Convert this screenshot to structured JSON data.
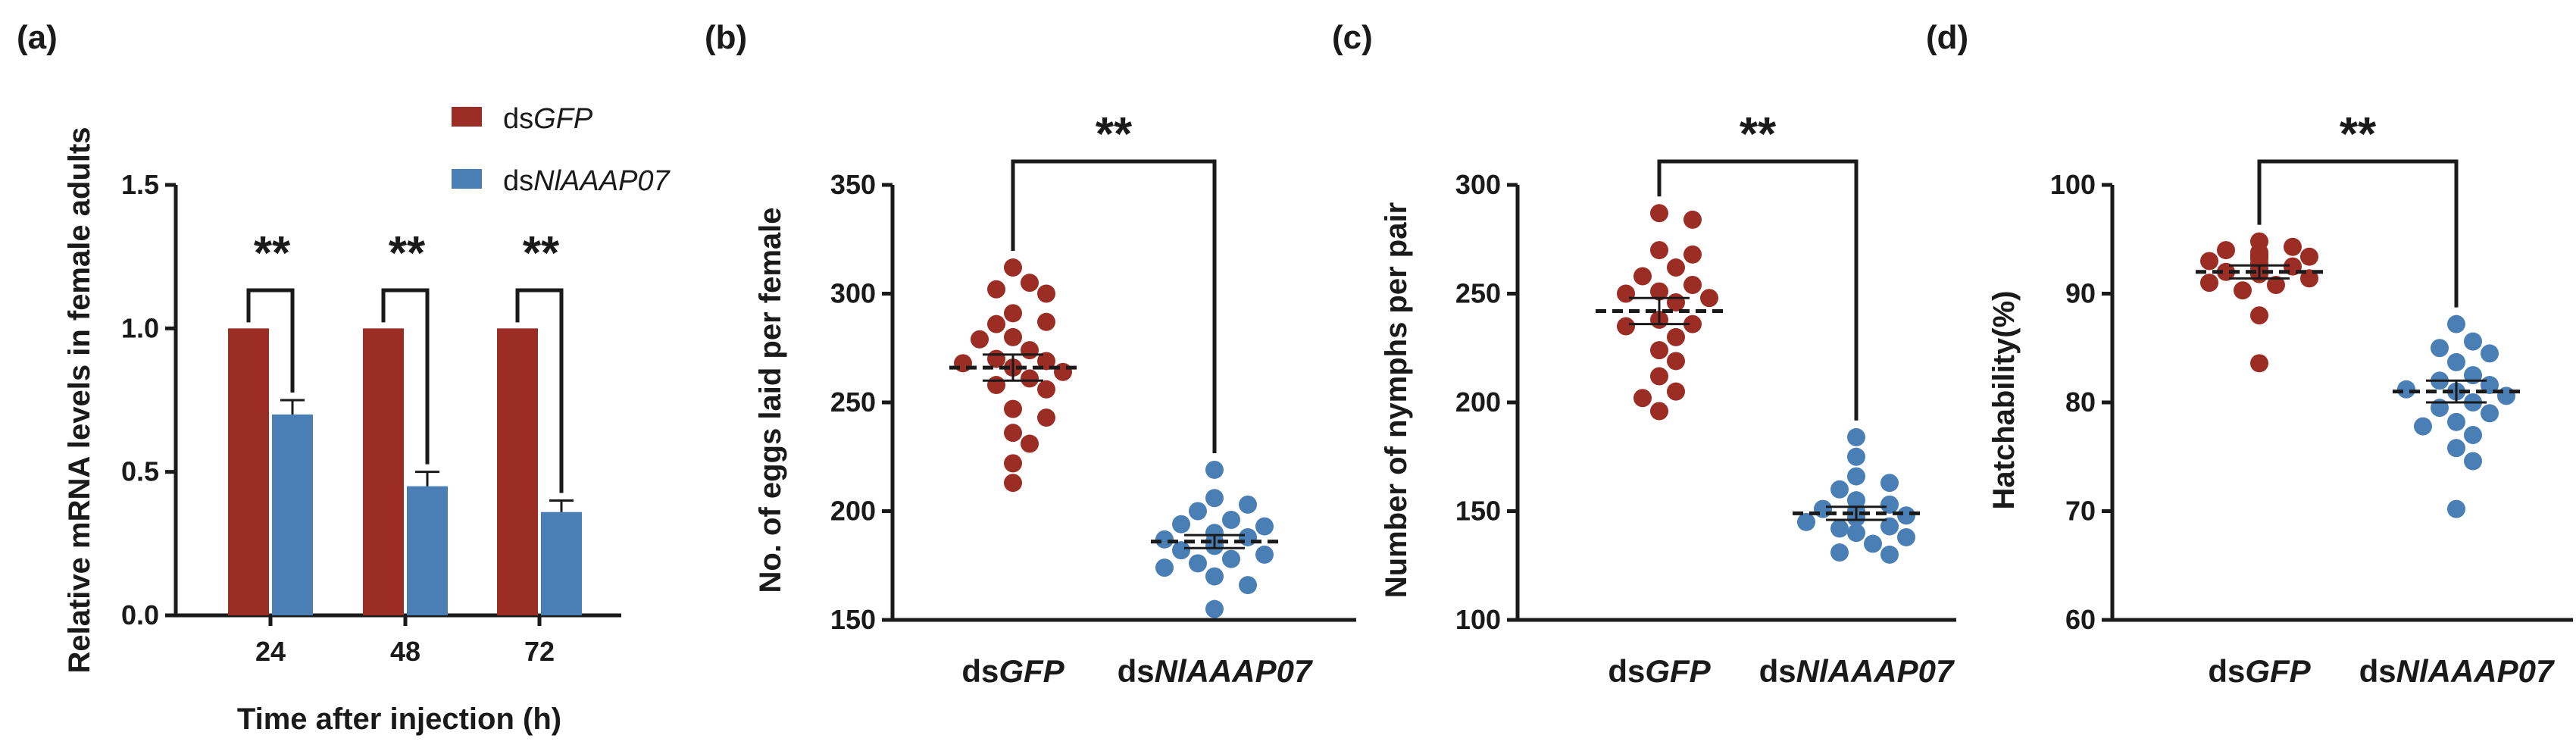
{
  "colors": {
    "dsGFP": "#9b2d25",
    "dsNlAAAP07": "#4a7fb5",
    "axis": "#1a1a1a"
  },
  "chart_data": [
    {
      "panel": "(a)",
      "type": "bar",
      "ylabel": "Relative mRNA levels in female adults",
      "xlabel": "Time after injection (h)",
      "categories": [
        "24",
        "48",
        "72"
      ],
      "ylim": [
        0,
        1.5
      ],
      "yticks": [
        "0.0",
        "0.5",
        "1.0",
        "1.5"
      ],
      "series": [
        {
          "name": "dsGFP",
          "prefix": "ds",
          "gene": "GFP",
          "values": [
            1.0,
            1.0,
            1.0
          ],
          "errors": [
            0,
            0,
            0
          ]
        },
        {
          "name": "dsNlAAAP07",
          "prefix": "ds",
          "gene": "NlAAAP07",
          "values": [
            0.7,
            0.45,
            0.36
          ],
          "errors": [
            0.05,
            0.05,
            0.04
          ]
        }
      ],
      "significance": [
        "**",
        "**",
        "**"
      ],
      "legend": "top-right"
    },
    {
      "panel": "(b)",
      "type": "scatter",
      "ylabel": "No. of eggs laid per female",
      "ylim": [
        150,
        350
      ],
      "yticks": [
        "150",
        "200",
        "250",
        "300",
        "350"
      ],
      "groups": [
        {
          "name": "dsGFP",
          "prefix": "ds",
          "gene": "GFP",
          "mean": 266,
          "sem": 6,
          "values": [
            312,
            305,
            302,
            300,
            291,
            287,
            286,
            280,
            279,
            274,
            270,
            269,
            268,
            266,
            264,
            261,
            258,
            256,
            247,
            243,
            236,
            231,
            222,
            213
          ]
        },
        {
          "name": "dsNlAAAP07",
          "prefix": "ds",
          "gene": "NlAAAP07",
          "mean": 186,
          "sem": 3,
          "values": [
            219,
            206,
            203,
            200,
            196,
            194,
            193,
            190,
            188,
            187,
            186,
            184,
            182,
            180,
            178,
            176,
            174,
            170,
            166,
            155
          ]
        }
      ],
      "significance": "**"
    },
    {
      "panel": "(c)",
      "type": "scatter",
      "ylabel": "Number of nymphs per pair",
      "ylim": [
        100,
        300
      ],
      "yticks": [
        "100",
        "150",
        "200",
        "250",
        "300"
      ],
      "groups": [
        {
          "name": "dsGFP",
          "prefix": "ds",
          "gene": "GFP",
          "mean": 242,
          "sem": 6,
          "values": [
            287,
            284,
            270,
            268,
            262,
            258,
            254,
            251,
            250,
            248,
            246,
            238,
            236,
            235,
            230,
            224,
            219,
            212,
            205,
            202,
            196
          ]
        },
        {
          "name": "dsNlAAAP07",
          "prefix": "ds",
          "gene": "NlAAAP07",
          "mean": 149,
          "sem": 3,
          "values": [
            184,
            175,
            166,
            163,
            160,
            155,
            153,
            151,
            150,
            149,
            148,
            147,
            145,
            143,
            142,
            140,
            138,
            135,
            131,
            130
          ]
        }
      ],
      "significance": "**"
    },
    {
      "panel": "(d)",
      "type": "scatter",
      "ylabel": "Hatchability(%)",
      "ylim": [
        60,
        100
      ],
      "yticks": [
        "60",
        "70",
        "80",
        "90",
        "100"
      ],
      "groups": [
        {
          "name": "dsGFP",
          "prefix": "ds",
          "gene": "GFP",
          "mean": 92,
          "sem": 0.6,
          "values": [
            94.8,
            94.3,
            94.0,
            93.8,
            93.6,
            93.5,
            93.4,
            93.3,
            93.2,
            93.0,
            92.8,
            92.5,
            92.3,
            92.0,
            91.8,
            91.4,
            91.0,
            90.8,
            90.3,
            88.0,
            83.6
          ]
        },
        {
          "name": "dsNlAAAP07",
          "prefix": "ds",
          "gene": "NlAAAP07",
          "mean": 81,
          "sem": 1,
          "values": [
            87.2,
            85.6,
            85.0,
            84.5,
            83.7,
            82.5,
            82.0,
            81.6,
            81.2,
            81.0,
            80.6,
            80.0,
            79.5,
            79.0,
            78.2,
            77.8,
            77.0,
            75.8,
            74.6,
            70.2
          ]
        }
      ],
      "significance": "**"
    }
  ]
}
